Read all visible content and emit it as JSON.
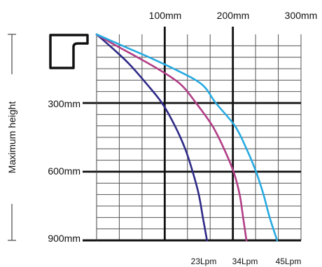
{
  "chart_data": {
    "type": "line",
    "xlabel": "",
    "ylabel": "Maximum height",
    "x_ticks": [
      "100mm",
      "200mm",
      "300mm"
    ],
    "y_ticks": [
      "300mm",
      "600mm",
      "900mm"
    ],
    "xlim": [
      0,
      300
    ],
    "ylim": [
      0,
      900
    ],
    "y_inverted": true,
    "x_axis_position": "top",
    "grid": true,
    "series": [
      {
        "name": "23Lpm",
        "color": "#2e2a87",
        "points": [
          [
            0,
            0
          ],
          [
            23,
            60
          ],
          [
            48,
            130
          ],
          [
            73,
            215
          ],
          [
            96,
            300
          ],
          [
            115,
            400
          ],
          [
            130,
            500
          ],
          [
            141,
            600
          ],
          [
            150,
            700
          ],
          [
            156,
            800
          ],
          [
            162,
            900
          ]
        ]
      },
      {
        "name": "34Lpm",
        "color": "#b13e86",
        "points": [
          [
            0,
            0
          ],
          [
            29,
            50
          ],
          [
            60,
            100
          ],
          [
            95,
            160
          ],
          [
            124,
            220
          ],
          [
            146,
            300
          ],
          [
            170,
            400
          ],
          [
            187,
            500
          ],
          [
            201,
            600
          ],
          [
            210,
            700
          ],
          [
            215,
            800
          ],
          [
            220,
            900
          ]
        ]
      },
      {
        "name": "45Lpm",
        "color": "#27aae1",
        "points": [
          [
            0,
            0
          ],
          [
            38,
            50
          ],
          [
            77,
            100
          ],
          [
            120,
            160
          ],
          [
            155,
            220
          ],
          [
            175,
            300
          ],
          [
            203,
            400
          ],
          [
            220,
            500
          ],
          [
            234,
            600
          ],
          [
            245,
            700
          ],
          [
            254,
            800
          ],
          [
            265,
            900
          ]
        ]
      }
    ]
  }
}
